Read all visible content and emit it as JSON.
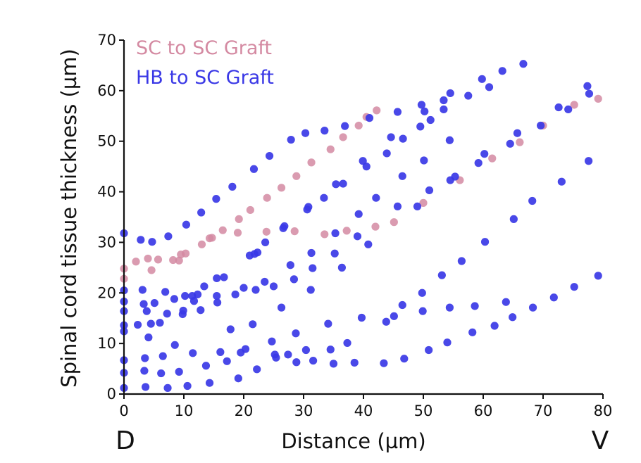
{
  "chart_data": {
    "type": "scatter",
    "xlabel": "Distance (µm)",
    "ylabel": "Spinal cord tissue thickness (µm)",
    "xlim": [
      0,
      80
    ],
    "ylim": [
      0,
      70
    ],
    "x_ticks": [
      "0",
      "10",
      "20",
      "30",
      "40",
      "50",
      "60",
      "70",
      "80"
    ],
    "y_ticks": [
      "0",
      "10",
      "20",
      "30",
      "40",
      "50",
      "60",
      "70"
    ],
    "x_end_labels": {
      "left": "D",
      "right": "V"
    },
    "grid": false,
    "legend_position": "top-left",
    "series": [
      {
        "name": "SC to SC Graft",
        "color": "#d48aa2",
        "points": [
          [
            0,
            22.8
          ],
          [
            0,
            24.8
          ],
          [
            2,
            26.2
          ],
          [
            4,
            26.8
          ],
          [
            4.6,
            24.5
          ],
          [
            5.7,
            26.6
          ],
          [
            8.2,
            26.5
          ],
          [
            9.2,
            26.4
          ],
          [
            9.5,
            27.6
          ],
          [
            10.3,
            27.8
          ],
          [
            13,
            29.6
          ],
          [
            14.3,
            30.8
          ],
          [
            14.7,
            30.9
          ],
          [
            16.5,
            32.4
          ],
          [
            19,
            31.9
          ],
          [
            19.2,
            34.6
          ],
          [
            21.1,
            36.4
          ],
          [
            23.8,
            32.1
          ],
          [
            23.9,
            38.8
          ],
          [
            26.3,
            40.8
          ],
          [
            28.5,
            32.2
          ],
          [
            28.8,
            43.1
          ],
          [
            31.3,
            45.8
          ],
          [
            33.5,
            31.6
          ],
          [
            34.5,
            48.4
          ],
          [
            36.6,
            50.8
          ],
          [
            37.2,
            32.3
          ],
          [
            39.2,
            53.1
          ],
          [
            40.5,
            54.8
          ],
          [
            42.2,
            56.1
          ],
          [
            42,
            33.1
          ],
          [
            45.1,
            34
          ],
          [
            50,
            37.8
          ],
          [
            56.1,
            42.3
          ],
          [
            61.5,
            46.6
          ],
          [
            66.1,
            49.8
          ],
          [
            70,
            53.1
          ],
          [
            75.2,
            57.2
          ],
          [
            79.2,
            58.4
          ]
        ]
      },
      {
        "name": "HB to SC Graft",
        "color": "#3a38e6",
        "points": [
          [
            0,
            31.8
          ],
          [
            0,
            20.5
          ],
          [
            0,
            18.3
          ],
          [
            0,
            16.4
          ],
          [
            0,
            13.6
          ],
          [
            0,
            12.4
          ],
          [
            0,
            6.7
          ],
          [
            0,
            4.2
          ],
          [
            0,
            1.2
          ],
          [
            2.3,
            13.7
          ],
          [
            2.8,
            30.5
          ],
          [
            3.1,
            20.6
          ],
          [
            3.3,
            17.8
          ],
          [
            3.4,
            4.6
          ],
          [
            3.5,
            7.1
          ],
          [
            3.6,
            1.4
          ],
          [
            3.8,
            16.4
          ],
          [
            4.1,
            11.2
          ],
          [
            4.5,
            13.9
          ],
          [
            4.7,
            30.1
          ],
          [
            5.1,
            18
          ],
          [
            6,
            14.1
          ],
          [
            6.2,
            4.1
          ],
          [
            6.5,
            7.5
          ],
          [
            6.9,
            20.2
          ],
          [
            7.2,
            15.9
          ],
          [
            7.3,
            1.2
          ],
          [
            7.4,
            31.2
          ],
          [
            8.4,
            18.8
          ],
          [
            8.5,
            9.7
          ],
          [
            9.2,
            4.4
          ],
          [
            9.8,
            15.8
          ],
          [
            9.9,
            16.5
          ],
          [
            10.2,
            19.4
          ],
          [
            10.4,
            33.5
          ],
          [
            10.6,
            1.6
          ],
          [
            11.4,
            19.4
          ],
          [
            11.5,
            8.1
          ],
          [
            11.7,
            18.4
          ],
          [
            12.3,
            19.7
          ],
          [
            12.8,
            16.6
          ],
          [
            12.9,
            35.9
          ],
          [
            13.4,
            21.3
          ],
          [
            13.7,
            5.6
          ],
          [
            14.3,
            2.2
          ],
          [
            15.4,
            38.6
          ],
          [
            15.5,
            22.9
          ],
          [
            15.5,
            19.4
          ],
          [
            15.6,
            18.1
          ],
          [
            16.1,
            8.3
          ],
          [
            16.7,
            23.1
          ],
          [
            17.2,
            6.5
          ],
          [
            17.8,
            12.8
          ],
          [
            18.1,
            41
          ],
          [
            18.6,
            19.7
          ],
          [
            19.1,
            3.1
          ],
          [
            19.5,
            8.2
          ],
          [
            20,
            21
          ],
          [
            20.3,
            8.9
          ],
          [
            21,
            27.4
          ],
          [
            21.5,
            13.8
          ],
          [
            21.7,
            44.5
          ],
          [
            21.8,
            27.7
          ],
          [
            22,
            20.6
          ],
          [
            22.2,
            4.9
          ],
          [
            22.3,
            28
          ],
          [
            23.5,
            22.2
          ],
          [
            23.6,
            30
          ],
          [
            24.3,
            47.1
          ],
          [
            24.7,
            10.4
          ],
          [
            25,
            21.3
          ],
          [
            25.2,
            7.8
          ],
          [
            25.4,
            7.2
          ],
          [
            26.3,
            17.1
          ],
          [
            26.6,
            32.8
          ],
          [
            26.8,
            33.2
          ],
          [
            27.4,
            7.8
          ],
          [
            27.8,
            25.5
          ],
          [
            27.9,
            50.3
          ],
          [
            28.4,
            22.7
          ],
          [
            28.7,
            12
          ],
          [
            28.8,
            6.3
          ],
          [
            30.3,
            51.6
          ],
          [
            30.4,
            8.7
          ],
          [
            30.6,
            36.5
          ],
          [
            30.8,
            37
          ],
          [
            31.2,
            20.6
          ],
          [
            31.3,
            27.9
          ],
          [
            31.5,
            24.9
          ],
          [
            31.6,
            6.6
          ],
          [
            33.4,
            38.8
          ],
          [
            33.5,
            52.1
          ],
          [
            34.1,
            13.9
          ],
          [
            34.5,
            8.8
          ],
          [
            35,
            6
          ],
          [
            35.2,
            27.8
          ],
          [
            35.3,
            31.8
          ],
          [
            35.4,
            41.5
          ],
          [
            36.4,
            25
          ],
          [
            36.6,
            41.6
          ],
          [
            36.9,
            53
          ],
          [
            37.3,
            10.1
          ],
          [
            38.5,
            6.2
          ],
          [
            39,
            31.2
          ],
          [
            39.2,
            35.6
          ],
          [
            39.7,
            15.1
          ],
          [
            39.9,
            46.1
          ],
          [
            40.5,
            45
          ],
          [
            40.8,
            29.6
          ],
          [
            41,
            54.6
          ],
          [
            42.1,
            38.8
          ],
          [
            43.4,
            6.1
          ],
          [
            43.8,
            14.3
          ],
          [
            43.9,
            47.6
          ],
          [
            44.6,
            50.8
          ],
          [
            45.1,
            15.4
          ],
          [
            45.7,
            37.1
          ],
          [
            45.7,
            55.8
          ],
          [
            46.5,
            17.6
          ],
          [
            46.5,
            43.1
          ],
          [
            46.6,
            50.5
          ],
          [
            46.8,
            7
          ],
          [
            49,
            37.1
          ],
          [
            49.5,
            52.9
          ],
          [
            49.7,
            57.2
          ],
          [
            49.8,
            20
          ],
          [
            49.9,
            16.4
          ],
          [
            50.1,
            46.2
          ],
          [
            50.2,
            55.9
          ],
          [
            50.9,
            8.7
          ],
          [
            51,
            40.3
          ],
          [
            51.2,
            54.2
          ],
          [
            53.1,
            23.5
          ],
          [
            53.4,
            58.1
          ],
          [
            53.4,
            56.3
          ],
          [
            54,
            10.2
          ],
          [
            54.4,
            17.1
          ],
          [
            54.5,
            59.5
          ],
          [
            54.4,
            50.2
          ],
          [
            54.5,
            42.3
          ],
          [
            55.3,
            43
          ],
          [
            56.4,
            26.3
          ],
          [
            57.5,
            59
          ],
          [
            58.2,
            12.2
          ],
          [
            58.6,
            17.4
          ],
          [
            59.2,
            45.7
          ],
          [
            59.8,
            62.3
          ],
          [
            60.3,
            30.1
          ],
          [
            60.2,
            47.5
          ],
          [
            61,
            60.7
          ],
          [
            61.9,
            13.5
          ],
          [
            63.2,
            63.9
          ],
          [
            63.8,
            18.2
          ],
          [
            64.5,
            49.5
          ],
          [
            64.9,
            15.2
          ],
          [
            65.1,
            34.6
          ],
          [
            65.7,
            51.6
          ],
          [
            66.7,
            65.3
          ],
          [
            68.2,
            38.2
          ],
          [
            68.3,
            17.1
          ],
          [
            69.6,
            53.1
          ],
          [
            71.8,
            19.1
          ],
          [
            72.6,
            56.7
          ],
          [
            73.1,
            42
          ],
          [
            74.2,
            56.3
          ],
          [
            75.2,
            21.2
          ],
          [
            77.4,
            60.9
          ],
          [
            77.6,
            46.1
          ],
          [
            77.7,
            59.4
          ],
          [
            79.2,
            23.4
          ]
        ]
      }
    ]
  }
}
